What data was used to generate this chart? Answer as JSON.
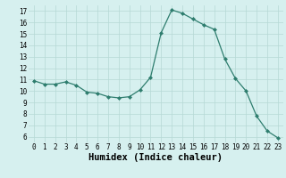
{
  "x": [
    0,
    1,
    2,
    3,
    4,
    5,
    6,
    7,
    8,
    9,
    10,
    11,
    12,
    13,
    14,
    15,
    16,
    17,
    18,
    19,
    20,
    21,
    22,
    23
  ],
  "y": [
    10.9,
    10.6,
    10.6,
    10.8,
    10.5,
    9.9,
    9.8,
    9.5,
    9.4,
    9.5,
    10.1,
    11.2,
    15.1,
    17.1,
    16.8,
    16.3,
    15.8,
    15.4,
    12.8,
    11.1,
    10.0,
    7.8,
    6.5,
    5.9
  ],
  "line_color": "#2e7d6e",
  "marker": "D",
  "marker_size": 2,
  "bg_color": "#d6f0ef",
  "grid_color": "#b5d8d5",
  "xlabel": "Humidex (Indice chaleur)",
  "yticks": [
    6,
    7,
    8,
    9,
    10,
    11,
    12,
    13,
    14,
    15,
    16,
    17
  ],
  "xticks": [
    0,
    1,
    2,
    3,
    4,
    5,
    6,
    7,
    8,
    9,
    10,
    11,
    12,
    13,
    14,
    15,
    16,
    17,
    18,
    19,
    20,
    21,
    22,
    23
  ],
  "ylim": [
    5.5,
    17.5
  ],
  "xlim": [
    -0.5,
    23.5
  ],
  "tick_fontsize": 5.5,
  "xlabel_fontsize": 7.5,
  "linewidth": 0.9
}
